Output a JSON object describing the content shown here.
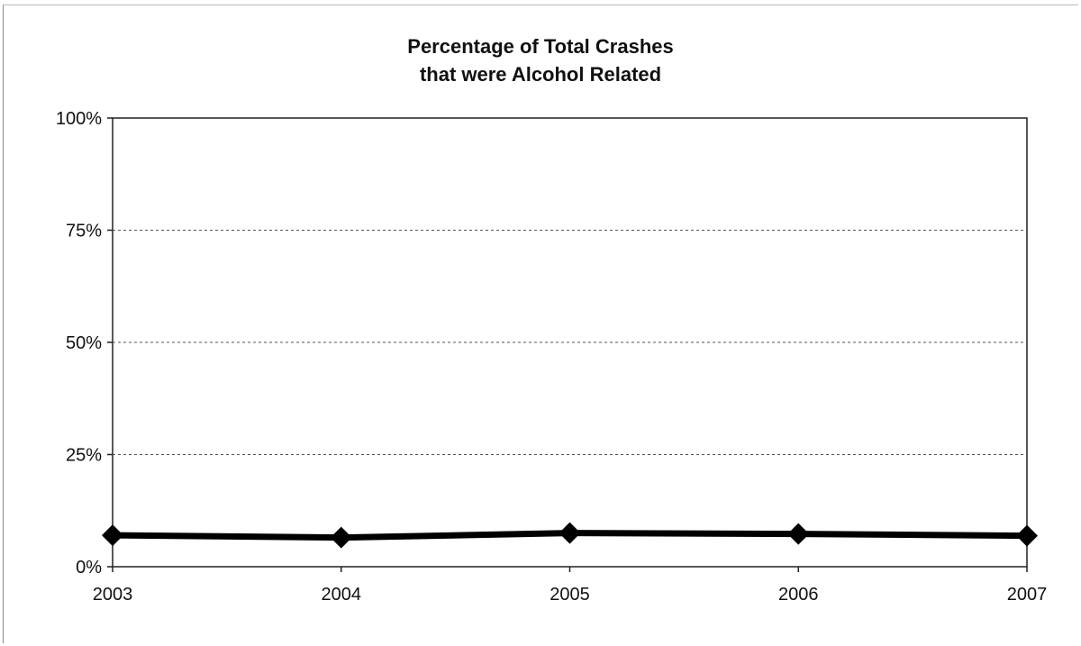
{
  "chart_data": {
    "type": "line",
    "title_lines": [
      "Percentage of Total Crashes",
      "that were Alcohol Related"
    ],
    "xlabel": "",
    "ylabel": "",
    "categories": [
      "2003",
      "2004",
      "2005",
      "2006",
      "2007"
    ],
    "series": [
      {
        "values": [
          7.0,
          6.5,
          7.5,
          7.3,
          6.9
        ]
      }
    ],
    "ylim": [
      0,
      100
    ],
    "yticks": [
      0,
      25,
      50,
      75,
      100
    ],
    "ytick_labels": [
      "0%",
      "25%",
      "50%",
      "75%",
      "100%"
    ],
    "grid": "horizontal dashed",
    "legend": "none",
    "marker": "diamond",
    "line_color": "#000000"
  }
}
